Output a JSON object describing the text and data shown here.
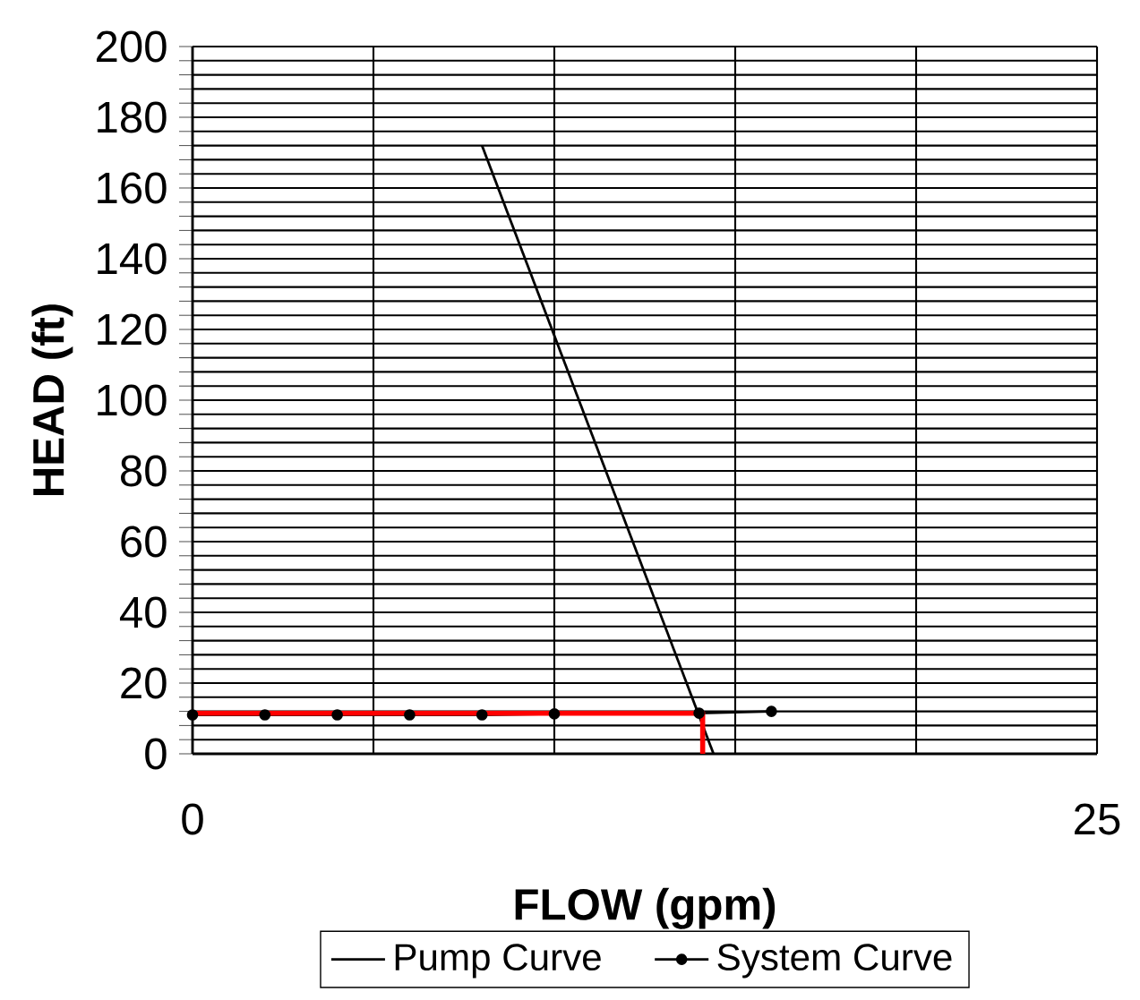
{
  "chart_data": {
    "type": "line",
    "xlabel": "FLOW (gpm)",
    "ylabel": "HEAD (ft)",
    "xlim": [
      0,
      25
    ],
    "ylim": [
      0,
      200
    ],
    "xticks": [
      0,
      {
        "value": 5,
        "label": null
      },
      {
        "value": 10,
        "label": null
      },
      {
        "value": 15,
        "label": null
      },
      {
        "value": 20,
        "label": null
      },
      25
    ],
    "yticks": [
      0,
      {
        "value": 4,
        "label": null
      },
      {
        "value": 8,
        "label": null
      },
      {
        "value": 12,
        "label": null
      },
      {
        "value": 16,
        "label": null
      },
      20,
      {
        "value": 24,
        "label": null
      },
      {
        "value": 28,
        "label": null
      },
      {
        "value": 32,
        "label": null
      },
      {
        "value": 36,
        "label": null
      },
      40,
      {
        "value": 44,
        "label": null
      },
      {
        "value": 48,
        "label": null
      },
      {
        "value": 52,
        "label": null
      },
      {
        "value": 56,
        "label": null
      },
      60,
      {
        "value": 64,
        "label": null
      },
      {
        "value": 68,
        "label": null
      },
      {
        "value": 72,
        "label": null
      },
      {
        "value": 76,
        "label": null
      },
      80,
      {
        "value": 84,
        "label": null
      },
      {
        "value": 88,
        "label": null
      },
      {
        "value": 92,
        "label": null
      },
      {
        "value": 96,
        "label": null
      },
      100,
      {
        "value": 104,
        "label": null
      },
      {
        "value": 108,
        "label": null
      },
      {
        "value": 112,
        "label": null
      },
      {
        "value": 116,
        "label": null
      },
      120,
      {
        "value": 124,
        "label": null
      },
      {
        "value": 128,
        "label": null
      },
      {
        "value": 132,
        "label": null
      },
      {
        "value": 136,
        "label": null
      },
      140,
      {
        "value": 144,
        "label": null
      },
      {
        "value": 148,
        "label": null
      },
      {
        "value": 152,
        "label": null
      },
      {
        "value": 156,
        "label": null
      },
      160,
      {
        "value": 164,
        "label": null
      },
      {
        "value": 168,
        "label": null
      },
      {
        "value": 172,
        "label": null
      },
      {
        "value": 176,
        "label": null
      },
      180,
      {
        "value": 184,
        "label": null
      },
      {
        "value": 188,
        "label": null
      },
      {
        "value": 192,
        "label": null
      },
      {
        "value": 196,
        "label": null
      },
      200
    ],
    "grid": true,
    "legend": "bottom",
    "series": [
      {
        "name": "Pump Curve",
        "color": "#000000",
        "marker": "none",
        "x": [
          8,
          14.4
        ],
        "values": [
          172,
          0
        ]
      },
      {
        "name": "System Curve",
        "color": "#000000",
        "marker": "circle",
        "x": [
          0,
          2,
          4,
          6,
          8,
          10,
          14,
          16
        ],
        "values": [
          11,
          11,
          11,
          11,
          11,
          11.3,
          11.5,
          12
        ]
      },
      {
        "color": "#ff0000",
        "marker": "none",
        "x": [
          0,
          14.1,
          14.1
        ],
        "values": [
          11.5,
          11.5,
          0
        ]
      }
    ]
  }
}
